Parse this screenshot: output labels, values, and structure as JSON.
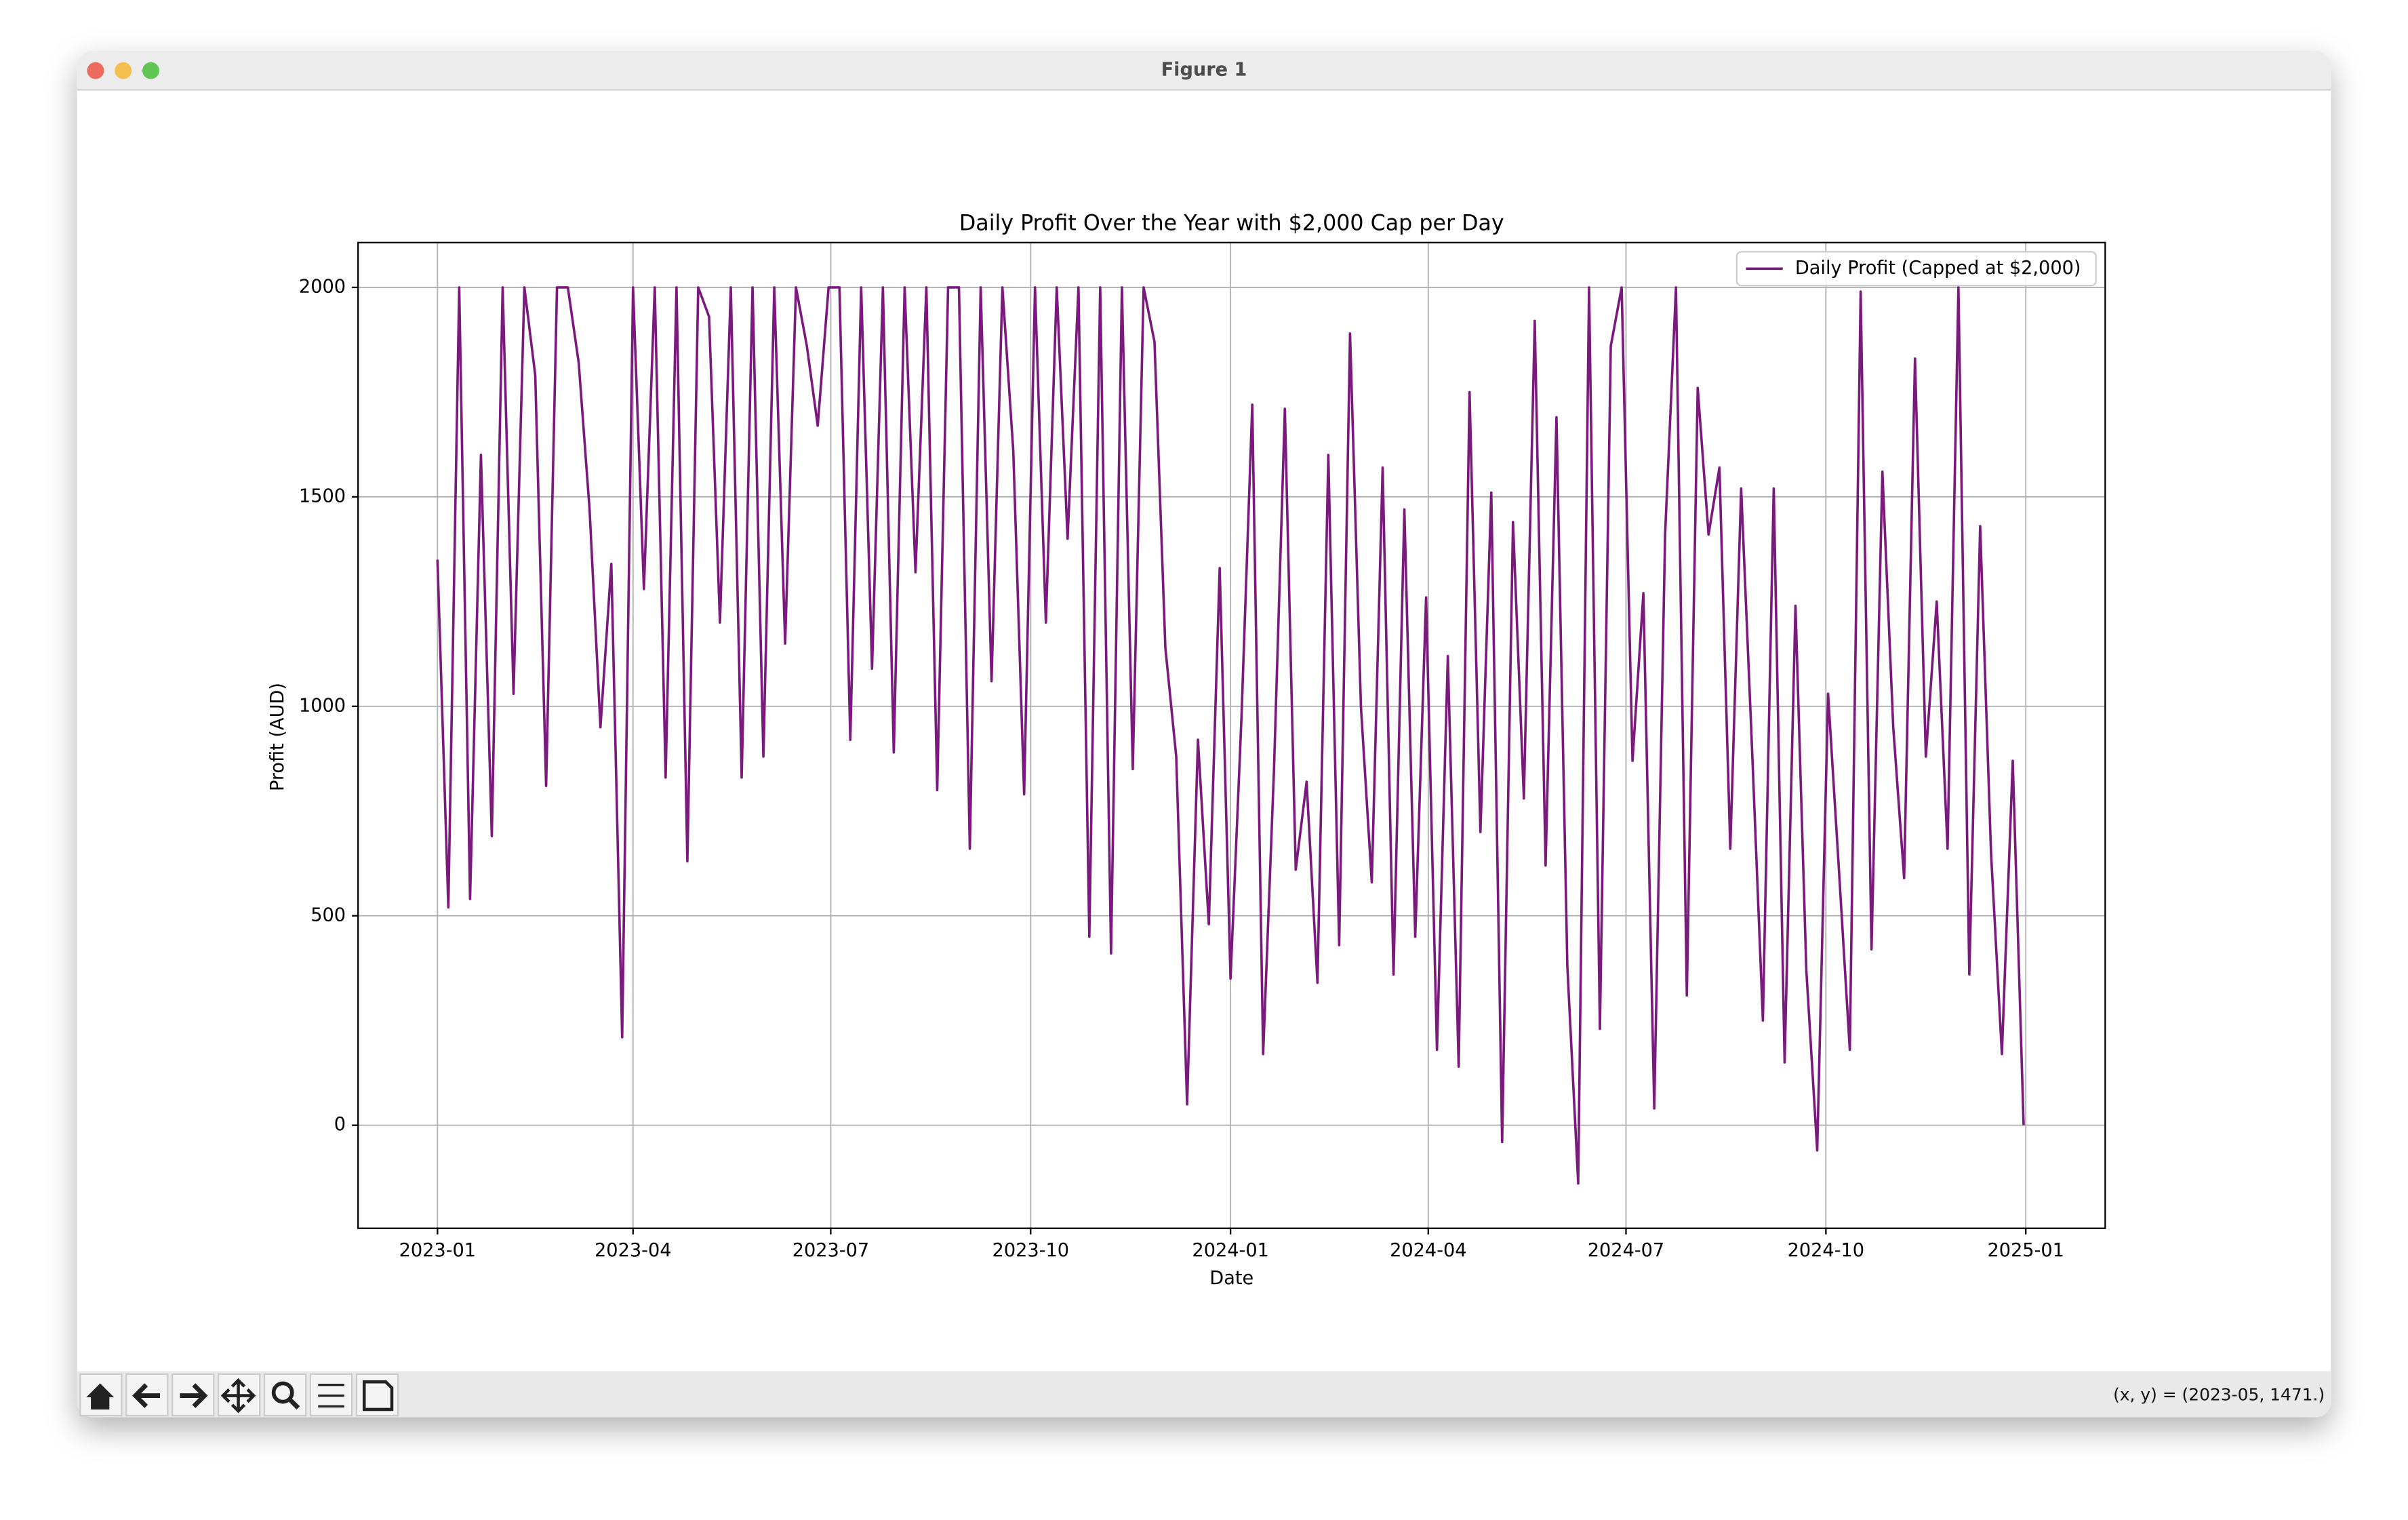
{
  "window": {
    "title": "Figure 1",
    "status": "(x, y) = (2023-05, 1471.)"
  },
  "chart_data": {
    "type": "line",
    "title": "Daily Profit Over the Year with $2,000 Cap per Day",
    "x_label": "Date",
    "y_label": "Profit (AUD)",
    "x": [
      0,
      5,
      10,
      15,
      20,
      25,
      30,
      35,
      40,
      45,
      50,
      55,
      60,
      65,
      70,
      75,
      80,
      85,
      90,
      95,
      100,
      105,
      110,
      115,
      120,
      125,
      130,
      135,
      140,
      145,
      150,
      155,
      160,
      165,
      170,
      175,
      180,
      185,
      190,
      195,
      200,
      205,
      210,
      215,
      220,
      225,
      230,
      235,
      240,
      245,
      250,
      255,
      260,
      265,
      270,
      275,
      280,
      285,
      290,
      295,
      300,
      305,
      310,
      315,
      320,
      325,
      330,
      335,
      340,
      345,
      350,
      355,
      360,
      365,
      370,
      375,
      380,
      385,
      390,
      395,
      400,
      405,
      410,
      415,
      420,
      425,
      430,
      435,
      440,
      445,
      450,
      455,
      460,
      465,
      470,
      475,
      480,
      485,
      490,
      495,
      500,
      505,
      510,
      515,
      520,
      525,
      530,
      535,
      540,
      545,
      550,
      555,
      560,
      565,
      570,
      575,
      580,
      585,
      590,
      595,
      600,
      605,
      610,
      615,
      620,
      625,
      630,
      635,
      640,
      645,
      650,
      655,
      660,
      665,
      670,
      675,
      680,
      685,
      690,
      695,
      700,
      705,
      710,
      715,
      720,
      725,
      730
    ],
    "series": [
      {
        "name": "Daily Profit (Capped at $2,000)",
        "color": "#7a1a7d",
        "values": [
          1350,
          520,
          2000,
          540,
          1600,
          690,
          2000,
          1030,
          2000,
          1790,
          810,
          2000,
          2000,
          1820,
          1470,
          950,
          1340,
          210,
          2000,
          1280,
          2000,
          830,
          2000,
          630,
          2000,
          1930,
          1200,
          2000,
          830,
          2000,
          880,
          2000,
          1150,
          2000,
          1860,
          1670,
          2000,
          2000,
          920,
          2000,
          1090,
          2000,
          890,
          2000,
          1320,
          2000,
          800,
          2000,
          2000,
          660,
          2000,
          1060,
          2000,
          1610,
          790,
          2000,
          1200,
          2000,
          1400,
          2000,
          450,
          2000,
          410,
          2000,
          850,
          2000,
          1870,
          1140,
          880,
          50,
          920,
          480,
          1330,
          350,
          970,
          1720,
          170,
          850,
          1710,
          610,
          820,
          340,
          1600,
          430,
          1890,
          1000,
          580,
          1570,
          360,
          1470,
          450,
          1260,
          180,
          1120,
          140,
          1750,
          700,
          1510,
          -40,
          1440,
          780,
          1920,
          620,
          1690,
          380,
          -139,
          2000,
          230,
          1860,
          2000,
          870,
          1270,
          40,
          1410,
          2000,
          310,
          1760,
          1410,
          1570,
          660,
          1520,
          900,
          250,
          1520,
          150,
          1240,
          370,
          -60,
          1030,
          610,
          180,
          1990,
          420,
          1560,
          950,
          590,
          1830,
          880,
          1250,
          660,
          2000,
          360,
          1430,
          650,
          170,
          870,
          0
        ]
      }
    ],
    "xlim": [
      -36.55,
      767.55
    ],
    "xticks": [
      {
        "value": 0,
        "label": "2023-01"
      },
      {
        "value": 90,
        "label": "2023-04"
      },
      {
        "value": 181,
        "label": "2023-07"
      },
      {
        "value": 273,
        "label": "2023-10"
      },
      {
        "value": 365,
        "label": "2024-01"
      },
      {
        "value": 456,
        "label": "2024-04"
      },
      {
        "value": 547,
        "label": "2024-07"
      },
      {
        "value": 639,
        "label": "2024-10"
      },
      {
        "value": 731,
        "label": "2025-01"
      }
    ],
    "ylim": [
      -246,
      2107
    ],
    "yticks": [
      0,
      500,
      1000,
      1500,
      2000
    ],
    "grid": true,
    "legend": "upper right"
  }
}
